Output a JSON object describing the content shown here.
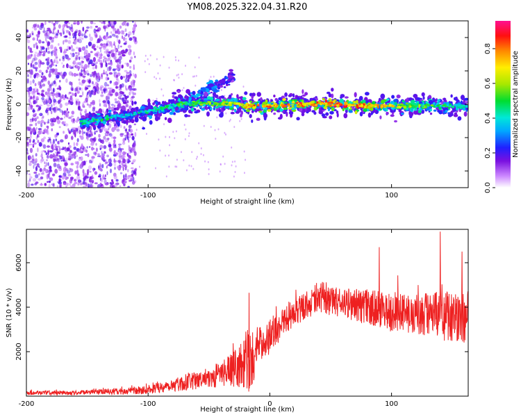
{
  "title": "YM08.2025.322.04.31.R20",
  "chart_data": [
    {
      "type": "heatmap",
      "xlabel": "Height of straight line (km)",
      "ylabel": "Frequency (Hz)",
      "xlim": [
        -200,
        163
      ],
      "ylim": [
        -50,
        50
      ],
      "x_ticks": [
        -200,
        -100,
        0,
        100
      ],
      "y_ticks": [
        -40,
        -20,
        0,
        20,
        40
      ],
      "colorbar": {
        "label": "Normalized spectral amplitude",
        "range": [
          0,
          0.96
        ],
        "ticks": [
          0,
          0.2,
          0.4,
          0.6,
          0.8
        ],
        "tick_labels": [
          "0.0",
          "0.2",
          "0.4",
          "0.6",
          "0.8"
        ],
        "colormap": "rainbow (white-violet-blue-cyan-green-yellow-orange-red-magenta)"
      },
      "ridge": {
        "description": "Main energy ridge of the spectrogram",
        "x": [
          -155,
          -140,
          -120,
          -100,
          -80,
          -60,
          -40,
          -30,
          -20,
          -10,
          0,
          20,
          40,
          60,
          80,
          100,
          120,
          140,
          163
        ],
        "y": [
          -11,
          -9,
          -7,
          -4,
          -1,
          1,
          0,
          1,
          -1,
          -1,
          -1,
          0,
          0,
          0,
          -1,
          -1,
          -1,
          -1,
          -1
        ],
        "amplitude": [
          0.45,
          0.5,
          0.4,
          0.45,
          0.5,
          0.55,
          0.6,
          0.65,
          0.75,
          0.8,
          0.85,
          0.85,
          0.85,
          0.85,
          0.8,
          0.7,
          0.6,
          0.5,
          0.45
        ]
      },
      "branch": {
        "description": "Upward-sloping secondary branch",
        "x": [
          -80,
          -60,
          -40,
          -30
        ],
        "y": [
          -2,
          6,
          12,
          17
        ],
        "amplitude": [
          0.35,
          0.35,
          0.3,
          0.25
        ]
      },
      "scatter_region": {
        "description": "Diffuse low-amplitude noise",
        "x_range": [
          -200,
          -110
        ],
        "y_range": [
          -50,
          50
        ],
        "amplitude_range": [
          0.05,
          0.2
        ]
      }
    },
    {
      "type": "line",
      "xlabel": "Height of straight line (km)",
      "ylabel": "SNR (10 * v/v)",
      "xlim": [
        -200,
        163
      ],
      "ylim": [
        0,
        7500
      ],
      "x_ticks": [
        -200,
        -100,
        0,
        100
      ],
      "y_ticks": [
        2000,
        4000,
        6000
      ],
      "color": "#ee2020",
      "envelope": {
        "x": [
          -200,
          -160,
          -140,
          -120,
          -100,
          -80,
          -60,
          -40,
          -30,
          -20,
          -15,
          -10,
          0,
          10,
          20,
          30,
          40,
          60,
          80,
          100,
          120,
          140,
          163
        ],
        "mean": [
          150,
          150,
          200,
          200,
          300,
          500,
          700,
          1000,
          1200,
          1500,
          1600,
          2300,
          2700,
          3300,
          3800,
          4100,
          4300,
          4200,
          4000,
          3800,
          3700,
          3600,
          3500
        ],
        "spread": [
          100,
          100,
          120,
          150,
          200,
          300,
          400,
          600,
          800,
          1200,
          1500,
          800,
          800,
          700,
          700,
          600,
          600,
          700,
          800,
          900,
          1000,
          1100,
          1200
        ]
      },
      "peaks": [
        {
          "x": -17,
          "y": 4650
        },
        {
          "x": 90,
          "y": 6700
        },
        {
          "x": 140,
          "y": 7400
        },
        {
          "x": 158,
          "y": 6500
        }
      ]
    }
  ]
}
